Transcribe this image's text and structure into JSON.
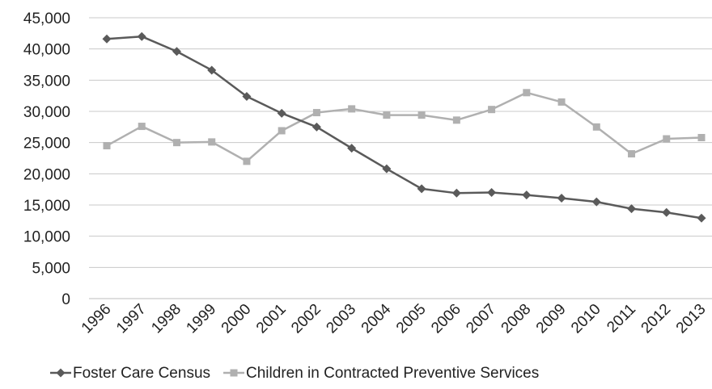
{
  "chart_data": {
    "type": "line",
    "title": "",
    "xlabel": "",
    "ylabel": "",
    "x": [
      "1996",
      "1997",
      "1998",
      "1999",
      "2000",
      "2001",
      "2002",
      "2003",
      "2004",
      "2005",
      "2006",
      "2007",
      "2008",
      "2009",
      "2010",
      "2011",
      "2012",
      "2013"
    ],
    "yticks": [
      "0",
      "5,000",
      "10,000",
      "15,000",
      "20,000",
      "25,000",
      "30,000",
      "35,000",
      "40,000",
      "45,000"
    ],
    "ylim": [
      0,
      45000
    ],
    "grid": true,
    "legend_position": "bottom",
    "series": [
      {
        "name": "Foster Care Census",
        "color": "#5a5a5a",
        "marker": "diamond",
        "values": [
          41600,
          42000,
          39600,
          36600,
          32400,
          29700,
          27500,
          24100,
          20800,
          17600,
          16900,
          17000,
          16600,
          16100,
          15500,
          14400,
          13800,
          12900
        ]
      },
      {
        "name": "Children in Contracted Preventive Services",
        "color": "#b0b0b0",
        "marker": "square",
        "values": [
          24500,
          27600,
          25000,
          25100,
          22000,
          26900,
          29800,
          30400,
          29400,
          29400,
          28600,
          30300,
          33000,
          31500,
          27500,
          23200,
          25600,
          25800
        ]
      }
    ]
  }
}
